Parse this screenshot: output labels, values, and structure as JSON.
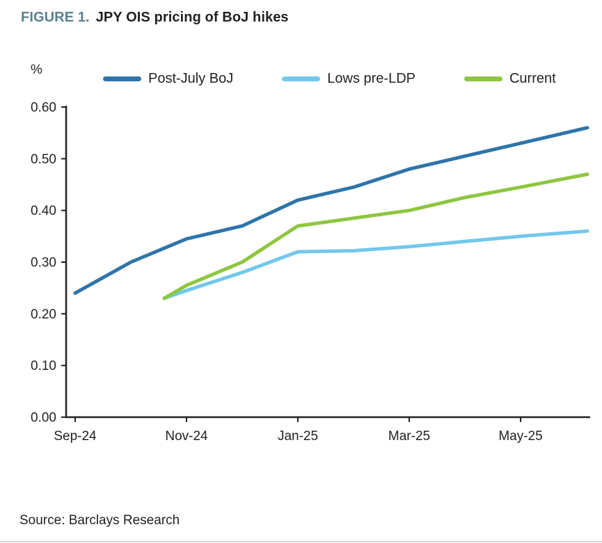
{
  "header": {
    "figure_label": "FIGURE 1."
  },
  "footer": {
    "source": "Source: Barclays Research"
  },
  "colors": {
    "figure_label": "#59808F",
    "text": "#231F20",
    "axis": "#231F20"
  },
  "chart_data": {
    "type": "line",
    "title": "JPY OIS pricing of BoJ hikes",
    "ylabel": "%",
    "xlabel": "",
    "ylim": [
      0.0,
      0.6
    ],
    "y_ticks": [
      0.0,
      0.1,
      0.2,
      0.3,
      0.4,
      0.5,
      0.6
    ],
    "x_tick_labels": [
      "Sep-24",
      "Nov-24",
      "Jan-25",
      "Mar-25",
      "May-25"
    ],
    "x_tick_months": [
      0,
      2,
      4,
      6,
      8
    ],
    "x_unit": "months from Sep-24",
    "grid": false,
    "legend_position": "top",
    "series": [
      {
        "name": "Post-July BoJ",
        "color": "#2E74A8",
        "x_months": [
          0,
          1,
          2,
          3,
          4,
          5,
          6,
          7,
          8,
          9.2
        ],
        "values": [
          0.24,
          0.3,
          0.345,
          0.37,
          0.42,
          0.445,
          0.48,
          0.505,
          0.53,
          0.56
        ]
      },
      {
        "name": "Lows pre-LDP",
        "color": "#72C7EC",
        "x_months": [
          1.6,
          2,
          3,
          4,
          5,
          6,
          7,
          8,
          9.2
        ],
        "values": [
          0.23,
          0.245,
          0.28,
          0.32,
          0.322,
          0.33,
          0.34,
          0.35,
          0.36
        ]
      },
      {
        "name": "Current",
        "color": "#8DC63F",
        "x_months": [
          1.6,
          2,
          3,
          4,
          5,
          6,
          7,
          8,
          9.2
        ],
        "values": [
          0.23,
          0.255,
          0.3,
          0.37,
          0.385,
          0.4,
          0.425,
          0.445,
          0.47
        ]
      }
    ]
  }
}
